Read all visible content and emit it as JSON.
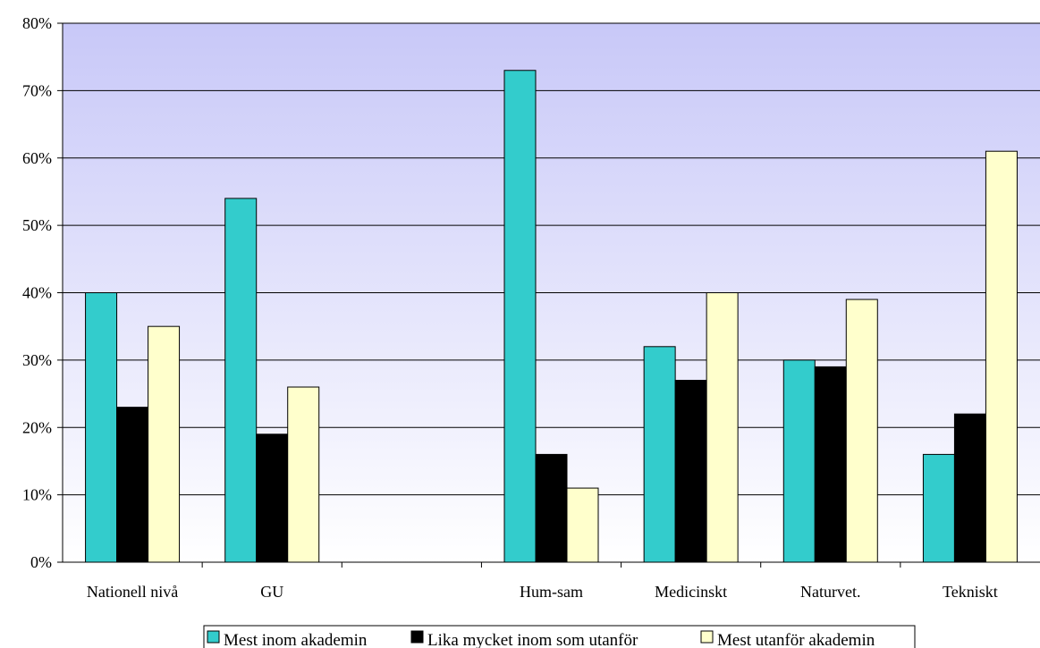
{
  "chart_data": {
    "type": "bar",
    "categories": [
      "Nationell nivå",
      "GU",
      "",
      "Hum-sam",
      "Medicinskt",
      "Naturvet.",
      "Tekniskt"
    ],
    "series": [
      {
        "name": "Mest inom akademin",
        "color": "#33CCCC",
        "values": [
          40,
          54,
          null,
          73,
          32,
          30,
          16
        ]
      },
      {
        "name": "Lika mycket inom som utanför",
        "color": "#000000",
        "values": [
          23,
          19,
          null,
          16,
          27,
          29,
          22
        ]
      },
      {
        "name": "Mest utanför akademin",
        "color": "#FFFFCC",
        "values": [
          35,
          26,
          null,
          11,
          40,
          39,
          61
        ]
      }
    ],
    "ylim": [
      0,
      80
    ],
    "yticks": [
      "0%",
      "10%",
      "20%",
      "30%",
      "40%",
      "50%",
      "60%",
      "70%",
      "80%"
    ],
    "grid": true,
    "legend_position": "bottom",
    "plot_background": {
      "top": "#C8C8F8",
      "bottom": "#FFFFFF"
    }
  }
}
